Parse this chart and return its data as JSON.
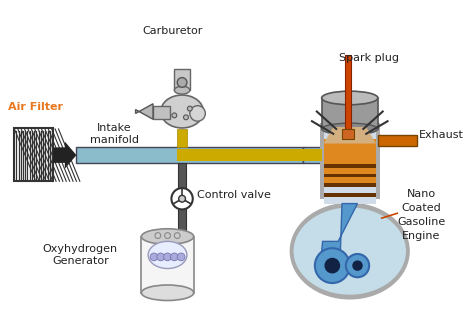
{
  "background_color": "#ffffff",
  "fig_width": 4.74,
  "fig_height": 3.18,
  "labels": {
    "air_filter": "Air Filter",
    "carburetor": "Carburetor",
    "intake_manifold": "Intake\nmanifold",
    "control_valve": "Control valve",
    "oxyhydrogen": "Oxyhydrogen\nGenerator",
    "spark_plug": "Spark plug",
    "exhaust": "Exhaust",
    "nano_coated": "Nano\nCoated\nGasoline\nEngine"
  },
  "colors": {
    "air_filter_text": "#e87820",
    "intake_pipe": "#8bbccc",
    "intake_pipe_edge": "#5588aa",
    "fuel_pipe": "#ccaa00",
    "engine_outer": "#888888",
    "engine_inner_bg": "#c5dde8",
    "engine_neck_bg": "#d0dde8",
    "piston_blue": "#5599cc",
    "piston_dark": "#3366aa",
    "spark_plug_rod": "#cc4400",
    "spark_plug_tip": "#cc6622",
    "exhaust_pipe": "#cc6600",
    "orange_band1": "#e08820",
    "orange_band2": "#cc7700",
    "orange_band3": "#aa5500",
    "head_gray": "#999999",
    "head_dark": "#777777",
    "generator_border": "#888888",
    "generator_fill": "#f5f5f5",
    "generator_inner": "#9999cc",
    "generator_cap": "#cccccc",
    "label_color": "#222222",
    "pipe_dark": "#444455",
    "control_pipe_color": "#555566",
    "arrow_black": "#111111",
    "wire_color": "#333333",
    "engine_grad1": "#c0c8d0",
    "engine_grad2": "#aab8c8"
  }
}
